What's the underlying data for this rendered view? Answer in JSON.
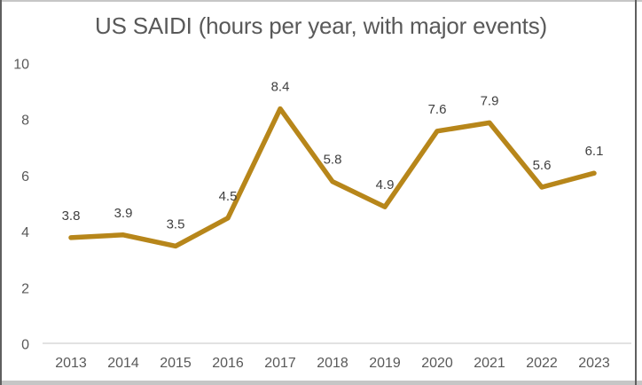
{
  "window": {
    "background": "#ffffff",
    "edge_strip_color": "#c6c6c6",
    "side_border_color": "#5f5f5f"
  },
  "chart_data": {
    "type": "line",
    "title": "US SAIDI (hours per year, with major events)",
    "categories": [
      "2013",
      "2014",
      "2015",
      "2016",
      "2017",
      "2018",
      "2019",
      "2020",
      "2021",
      "2022",
      "2023"
    ],
    "values": [
      3.8,
      3.9,
      3.5,
      4.5,
      8.4,
      5.8,
      4.9,
      7.6,
      7.9,
      5.6,
      6.1
    ],
    "data_labels": [
      "3.8",
      "3.9",
      "3.5",
      "4.5",
      "8.4",
      "5.8",
      "4.9",
      "7.6",
      "7.9",
      "5.6",
      "6.1"
    ],
    "xlabel": "",
    "ylabel": "",
    "ylim": [
      0,
      10
    ],
    "yticks": [
      0,
      2,
      4,
      6,
      8,
      10
    ],
    "grid": false,
    "legend": "none",
    "data_labels_shown": true,
    "markers": false,
    "colors": {
      "line": "#B7861A",
      "title_text": "#595959",
      "tick_text": "#595959",
      "data_label_text": "#404040",
      "axis_line": "#D9D9D9"
    }
  }
}
